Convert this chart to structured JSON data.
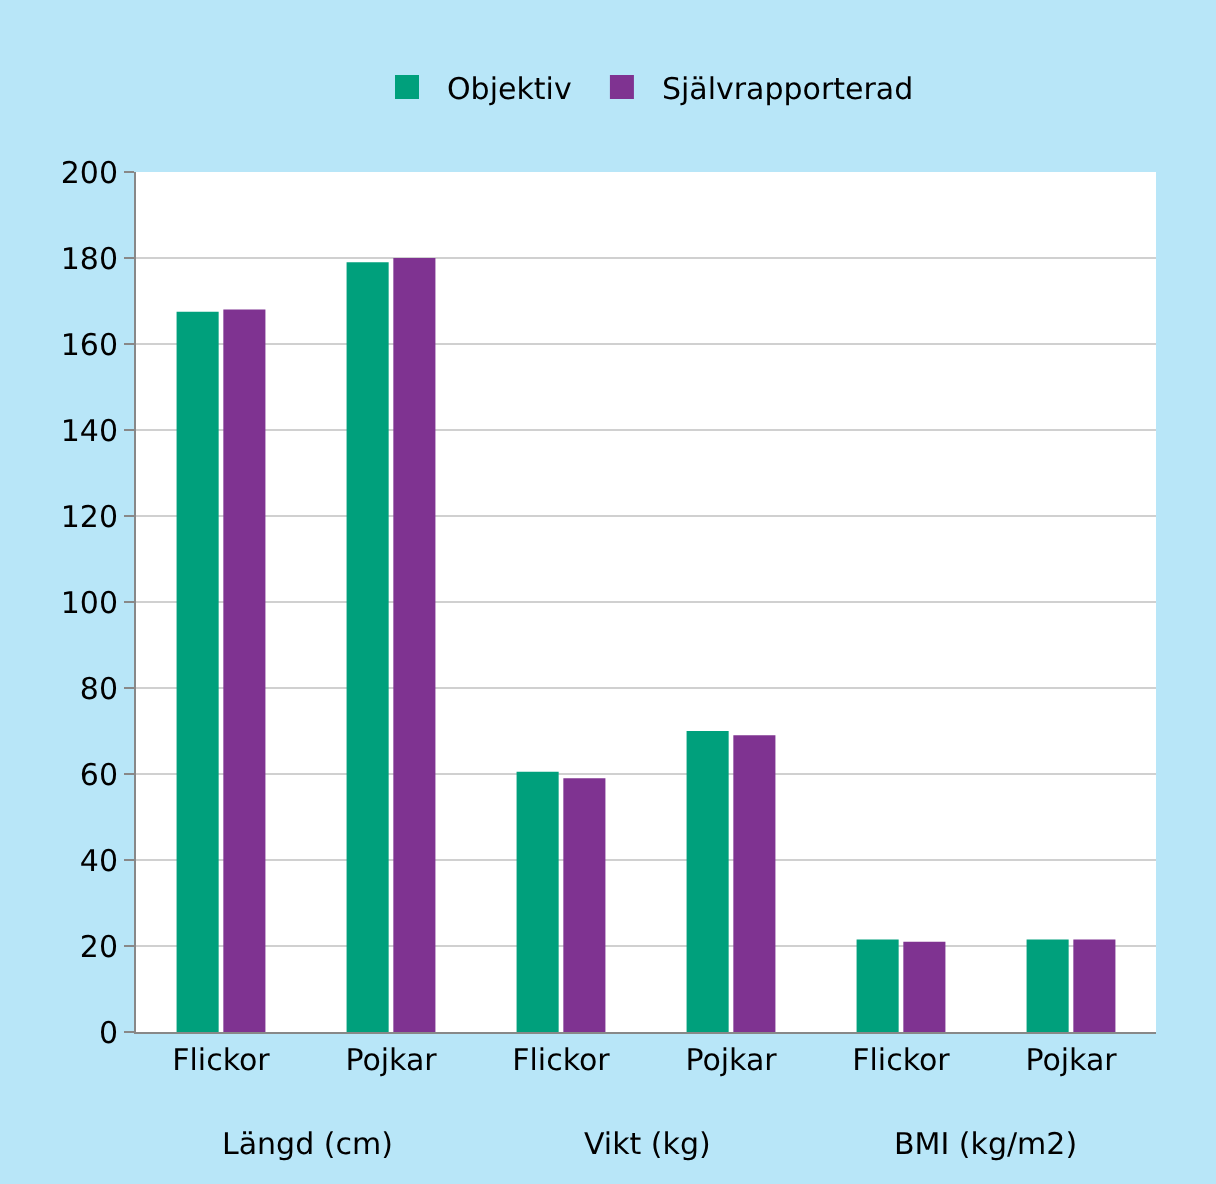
{
  "chart_data": {
    "type": "bar",
    "categories": [
      "Flickor",
      "Pojkar",
      "Flickor",
      "Pojkar",
      "Flickor",
      "Pojkar"
    ],
    "annotations": [
      "Längd (cm)",
      "Vikt (kg)",
      "BMI (kg/m2)"
    ],
    "series": [
      {
        "name": "Objektiv",
        "color": "#00a07c",
        "values": [
          167.5,
          179,
          60.5,
          70,
          21.5,
          21.5
        ]
      },
      {
        "name": "Självrapporterad",
        "color": "#7f3391",
        "values": [
          168,
          180,
          59,
          69,
          21,
          21.5
        ]
      }
    ],
    "ylim": [
      0,
      200
    ],
    "yticks": [
      0,
      20,
      40,
      60,
      80,
      100,
      120,
      140,
      160,
      180,
      200
    ],
    "grid": "y",
    "legend": "top"
  }
}
